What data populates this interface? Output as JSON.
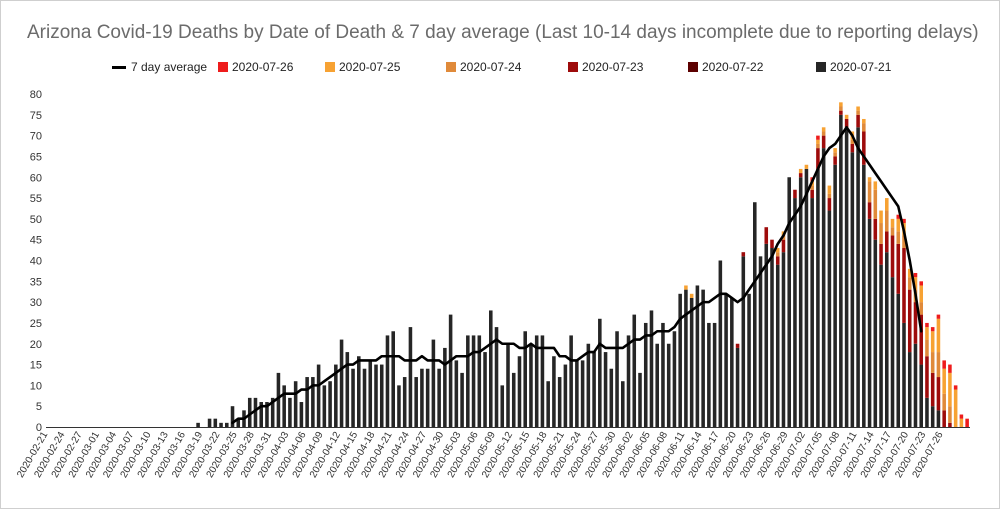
{
  "chart_data": {
    "type": "bar",
    "title": "Arizona Covid-19 Deaths by Date of Death & 7 day average (Last 10-14 days incomplete due to reporting delays)",
    "xlabel": "",
    "ylabel": "",
    "ylim": [
      0,
      80
    ],
    "yticks": [
      0,
      5,
      10,
      15,
      20,
      25,
      30,
      35,
      40,
      45,
      50,
      55,
      60,
      65,
      70,
      75,
      80
    ],
    "grid": false,
    "legend_position": "top",
    "stacked": true,
    "start_date": "2020-02-21",
    "x_tick_labels": [
      "2020-02-21",
      "2020-02-24",
      "2020-02-27",
      "2020-03-01",
      "2020-03-04",
      "2020-03-07",
      "2020-03-10",
      "2020-03-13",
      "2020-03-16",
      "2020-03-19",
      "2020-03-22",
      "2020-03-25",
      "2020-03-28",
      "2020-03-31",
      "2020-04-03",
      "2020-04-06",
      "2020-04-09",
      "2020-04-12",
      "2020-04-15",
      "2020-04-18",
      "2020-04-21",
      "2020-04-24",
      "2020-04-27",
      "2020-04-30",
      "2020-05-03",
      "2020-05-06",
      "2020-05-09",
      "2020-05-12",
      "2020-05-15",
      "2020-05-18",
      "2020-05-21",
      "2020-05-24",
      "2020-05-27",
      "2020-05-30",
      "2020-06-02",
      "2020-06-05",
      "2020-06-08",
      "2020-06-11",
      "2020-06-14",
      "2020-06-17",
      "2020-06-20",
      "2020-06-23",
      "2020-06-26",
      "2020-06-29",
      "2020-07-02",
      "2020-07-05",
      "2020-07-08",
      "2020-07-11",
      "2020-07-14",
      "2020-07-17",
      "2020-07-20",
      "2020-07-23",
      "2020-07-26"
    ],
    "series": [
      {
        "name": "2020-07-21",
        "color": "#262626",
        "values": [
          0,
          0,
          0,
          0,
          0,
          0,
          0,
          0,
          0,
          0,
          0,
          0,
          0,
          0,
          0,
          0,
          0,
          0,
          0,
          0,
          0,
          0,
          0,
          0,
          0,
          0,
          1,
          0,
          2,
          2,
          1,
          1,
          5,
          2,
          4,
          7,
          7,
          6,
          6,
          7,
          13,
          10,
          7,
          11,
          6,
          12,
          12,
          15,
          10,
          11,
          15,
          21,
          18,
          14,
          17,
          14,
          16,
          15,
          15,
          22,
          23,
          10,
          12,
          24,
          12,
          14,
          14,
          21,
          14,
          19,
          27,
          16,
          13,
          22,
          22,
          22,
          18,
          28,
          24,
          10,
          20,
          13,
          17,
          23,
          20,
          22,
          22,
          11,
          17,
          12,
          15,
          22,
          16,
          16,
          20,
          18,
          26,
          18,
          14,
          23,
          11,
          22,
          27,
          13,
          25,
          28,
          20,
          25,
          20,
          23,
          32,
          33,
          31,
          34,
          33,
          25,
          25,
          40,
          32,
          31,
          19,
          41,
          32,
          54,
          41,
          44,
          43,
          39,
          42,
          60,
          55,
          60,
          62,
          55,
          62,
          67,
          52,
          63,
          75,
          72,
          66,
          72,
          63,
          50,
          45,
          39,
          42,
          36,
          32,
          25,
          18,
          20,
          15,
          7,
          5,
          4,
          0,
          0,
          0,
          0,
          0
        ]
      },
      {
        "name": "2020-07-22",
        "color": "#5c0000",
        "values": [
          0,
          0,
          0,
          0,
          0,
          0,
          0,
          0,
          0,
          0,
          0,
          0,
          0,
          0,
          0,
          0,
          0,
          0,
          0,
          0,
          0,
          0,
          0,
          0,
          0,
          0,
          0,
          0,
          0,
          0,
          0,
          0,
          0,
          0,
          0,
          0,
          0,
          0,
          0,
          0,
          0,
          0,
          0,
          0,
          0,
          0,
          0,
          0,
          0,
          0,
          0,
          0,
          0,
          0,
          0,
          0,
          0,
          0,
          0,
          0,
          0,
          0,
          0,
          0,
          0,
          0,
          0,
          0,
          0,
          0,
          0,
          0,
          0,
          0,
          0,
          0,
          0,
          0,
          0,
          0,
          0,
          0,
          0,
          0,
          0,
          0,
          0,
          0,
          0,
          0,
          0,
          0,
          0,
          0,
          0,
          0,
          0,
          0,
          0,
          0,
          0,
          0,
          0,
          0,
          0,
          0,
          0,
          0,
          0,
          0,
          0,
          0,
          0,
          0,
          0,
          0,
          0,
          0,
          0,
          0,
          0,
          0,
          0,
          0,
          0,
          0,
          0,
          0,
          0,
          0,
          0,
          0,
          0,
          0,
          0,
          0,
          0,
          0,
          0,
          0,
          0,
          0,
          0,
          0,
          0,
          0,
          0,
          0,
          0,
          0,
          0,
          0,
          0,
          0,
          0,
          0,
          0,
          0,
          0,
          0,
          0
        ]
      },
      {
        "name": "2020-07-23",
        "color": "#9e0b0b",
        "values": [
          0,
          0,
          0,
          0,
          0,
          0,
          0,
          0,
          0,
          0,
          0,
          0,
          0,
          0,
          0,
          0,
          0,
          0,
          0,
          0,
          0,
          0,
          0,
          0,
          0,
          0,
          0,
          0,
          0,
          0,
          0,
          0,
          0,
          0,
          0,
          0,
          0,
          0,
          0,
          0,
          0,
          0,
          0,
          0,
          0,
          0,
          0,
          0,
          0,
          0,
          0,
          0,
          0,
          0,
          0,
          0,
          0,
          0,
          0,
          0,
          0,
          0,
          0,
          0,
          0,
          0,
          0,
          0,
          0,
          0,
          0,
          0,
          0,
          0,
          0,
          0,
          0,
          0,
          0,
          0,
          0,
          0,
          0,
          0,
          0,
          0,
          0,
          0,
          0,
          0,
          0,
          0,
          0,
          0,
          0,
          0,
          0,
          0,
          0,
          0,
          0,
          0,
          0,
          0,
          0,
          0,
          0,
          0,
          0,
          0,
          0,
          0,
          0,
          0,
          0,
          0,
          0,
          0,
          0,
          0,
          1,
          1,
          0,
          0,
          0,
          4,
          2,
          2,
          3,
          0,
          2,
          1,
          0,
          2,
          5,
          3,
          3,
          2,
          1,
          2,
          2,
          3,
          8,
          4,
          5,
          5,
          5,
          10,
          12,
          18,
          15,
          10,
          12,
          10,
          8,
          8,
          4,
          1,
          0,
          0,
          0
        ]
      },
      {
        "name": "2020-07-24",
        "color": "#e08a3a",
        "values": [
          0,
          0,
          0,
          0,
          0,
          0,
          0,
          0,
          0,
          0,
          0,
          0,
          0,
          0,
          0,
          0,
          0,
          0,
          0,
          0,
          0,
          0,
          0,
          0,
          0,
          0,
          0,
          0,
          0,
          0,
          0,
          0,
          0,
          0,
          0,
          0,
          0,
          0,
          0,
          0,
          0,
          0,
          0,
          0,
          0,
          0,
          0,
          0,
          0,
          0,
          0,
          0,
          0,
          0,
          0,
          0,
          0,
          0,
          0,
          0,
          0,
          0,
          0,
          0,
          0,
          0,
          0,
          0,
          0,
          0,
          0,
          0,
          0,
          0,
          0,
          0,
          0,
          0,
          0,
          0,
          0,
          0,
          0,
          0,
          0,
          0,
          0,
          0,
          0,
          0,
          0,
          0,
          0,
          0,
          0,
          0,
          0,
          0,
          0,
          0,
          0,
          0,
          0,
          0,
          0,
          0,
          0,
          0,
          0,
          0,
          0,
          0,
          0,
          0,
          0,
          0,
          0,
          0,
          0,
          0,
          0,
          0,
          0,
          0,
          0,
          0,
          0,
          1,
          1,
          0,
          0,
          0,
          0,
          1,
          1,
          1,
          1,
          1,
          1,
          0,
          1,
          1,
          2,
          5,
          7,
          5,
          5,
          2,
          3,
          3,
          3,
          3,
          3,
          4,
          5,
          6,
          4,
          4,
          0,
          0,
          0
        ]
      },
      {
        "name": "2020-07-25",
        "color": "#f7a233",
        "values": [
          0,
          0,
          0,
          0,
          0,
          0,
          0,
          0,
          0,
          0,
          0,
          0,
          0,
          0,
          0,
          0,
          0,
          0,
          0,
          0,
          0,
          0,
          0,
          0,
          0,
          0,
          0,
          0,
          0,
          0,
          0,
          0,
          0,
          0,
          0,
          0,
          0,
          0,
          0,
          0,
          0,
          0,
          0,
          0,
          0,
          0,
          0,
          0,
          0,
          0,
          0,
          0,
          0,
          0,
          0,
          0,
          0,
          0,
          0,
          0,
          0,
          0,
          0,
          0,
          0,
          0,
          0,
          0,
          0,
          0,
          0,
          0,
          0,
          0,
          0,
          0,
          0,
          0,
          0,
          0,
          0,
          0,
          0,
          0,
          0,
          0,
          0,
          0,
          0,
          0,
          0,
          0,
          0,
          0,
          0,
          0,
          0,
          0,
          0,
          0,
          0,
          0,
          0,
          0,
          0,
          0,
          0,
          0,
          0,
          0,
          0,
          1,
          1,
          0,
          0,
          0,
          0,
          0,
          0,
          0,
          0,
          0,
          0,
          0,
          0,
          0,
          0,
          1,
          1,
          0,
          0,
          1,
          1,
          1,
          1,
          1,
          2,
          1,
          1,
          1,
          2,
          1,
          1,
          1,
          2,
          3,
          3,
          2,
          3,
          3,
          2,
          3,
          4,
          3,
          5,
          8,
          6,
          8,
          9,
          2,
          0
        ]
      },
      {
        "name": "2020-07-26",
        "color": "#ee1c1c",
        "values": [
          0,
          0,
          0,
          0,
          0,
          0,
          0,
          0,
          0,
          0,
          0,
          0,
          0,
          0,
          0,
          0,
          0,
          0,
          0,
          0,
          0,
          0,
          0,
          0,
          0,
          0,
          0,
          0,
          0,
          0,
          0,
          0,
          0,
          0,
          0,
          0,
          0,
          0,
          0,
          0,
          0,
          0,
          0,
          0,
          0,
          0,
          0,
          0,
          0,
          0,
          0,
          0,
          0,
          0,
          0,
          0,
          0,
          0,
          0,
          0,
          0,
          0,
          0,
          0,
          0,
          0,
          0,
          0,
          0,
          0,
          0,
          0,
          0,
          0,
          0,
          0,
          0,
          0,
          0,
          0,
          0,
          0,
          0,
          0,
          0,
          0,
          0,
          0,
          0,
          0,
          0,
          0,
          0,
          0,
          0,
          0,
          0,
          0,
          0,
          0,
          0,
          0,
          0,
          0,
          0,
          0,
          0,
          0,
          0,
          0,
          0,
          0,
          0,
          0,
          0,
          0,
          0,
          0,
          0,
          0,
          0,
          0,
          0,
          0,
          0,
          0,
          0,
          0,
          0,
          0,
          0,
          0,
          0,
          1,
          1,
          0,
          0,
          0,
          0,
          0,
          0,
          0,
          0,
          0,
          0,
          0,
          0,
          0,
          1,
          1,
          0,
          1,
          1,
          1,
          1,
          1,
          2,
          2,
          1,
          1,
          2
        ]
      },
      {
        "name": "7 day average",
        "type": "line",
        "color": "#000000",
        "values": [
          null,
          null,
          null,
          null,
          null,
          null,
          null,
          null,
          null,
          null,
          null,
          null,
          null,
          null,
          null,
          null,
          null,
          null,
          null,
          null,
          null,
          null,
          null,
          null,
          null,
          null,
          null,
          null,
          null,
          null,
          null,
          null,
          1,
          2,
          2,
          3,
          4,
          5,
          5,
          6,
          7,
          8,
          8,
          8,
          9,
          9,
          10,
          10,
          11,
          12,
          13,
          14,
          15,
          15,
          16,
          16,
          16,
          16,
          17,
          17,
          17,
          17,
          16,
          16,
          16,
          17,
          16,
          16,
          16,
          15,
          16,
          17,
          17,
          17,
          18,
          18,
          19,
          20,
          21,
          20,
          20,
          20,
          19,
          19,
          20,
          19,
          19,
          19,
          19,
          17,
          17,
          16,
          16,
          17,
          18,
          18,
          20,
          19,
          19,
          19,
          19,
          20,
          21,
          21,
          22,
          22,
          23,
          23,
          23,
          24,
          26,
          27,
          28,
          29,
          30,
          30,
          31,
          32,
          32,
          31,
          30,
          31,
          33,
          35,
          37,
          39,
          41,
          44,
          46,
          49,
          51,
          53,
          56,
          59,
          62,
          65,
          67,
          68,
          70,
          72,
          70,
          67,
          65,
          63,
          61,
          59,
          57,
          55,
          53,
          47,
          40,
          32,
          23,
          null,
          null,
          null
        ]
      }
    ]
  }
}
